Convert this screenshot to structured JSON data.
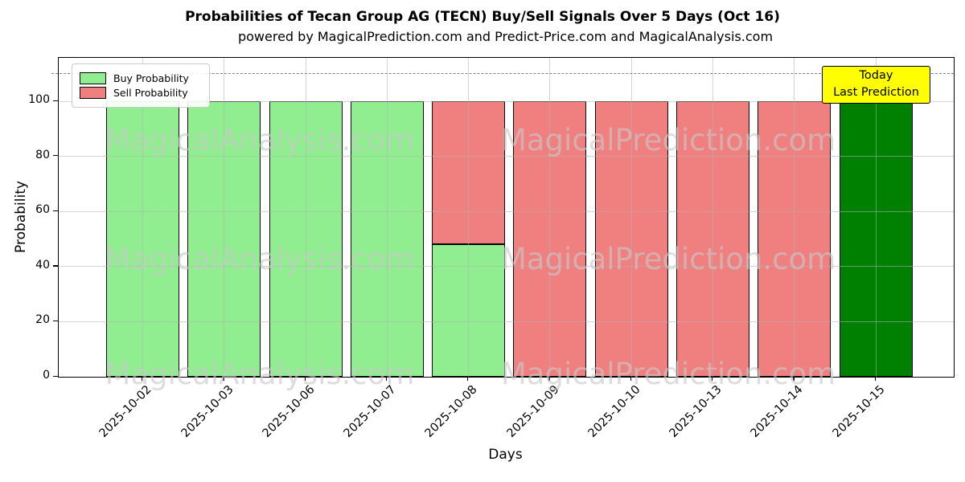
{
  "title": "Probabilities of Tecan Group AG (TECN) Buy/Sell Signals Over 5 Days (Oct 16)",
  "subtitle": "powered by MagicalPrediction.com and Predict-Price.com and MagicalAnalysis.com",
  "legend": {
    "items": [
      {
        "label": "Buy Probability",
        "color": "#90EE90"
      },
      {
        "label": "Sell Probability",
        "color": "#F08080"
      }
    ]
  },
  "annotation": {
    "line1": "Today",
    "line2": "Last Prediction",
    "bg_color": "#FFFF00"
  },
  "watermarks": {
    "left_text": "MagicalAnalysis.com",
    "right_text": "MagicalPrediction.com"
  },
  "axes": {
    "x_label": "Days",
    "y_label": "Probability",
    "y_ticks": [
      0,
      20,
      40,
      60,
      80,
      100
    ]
  },
  "chart_data": {
    "type": "bar",
    "stacked": true,
    "title": "Probabilities of Tecan Group AG (TECN) Buy/Sell Signals Over 5 Days (Oct 16)",
    "xlabel": "Days",
    "ylabel": "Probability",
    "ylim": [
      0,
      115.7
    ],
    "grid": true,
    "legend_position": "upper left",
    "dashed_threshold_y": 110,
    "categories": [
      "2025-10-02",
      "2025-10-03",
      "2025-10-06",
      "2025-10-07",
      "2025-10-08",
      "2025-10-09",
      "2025-10-10",
      "2025-10-13",
      "2025-10-14",
      "2025-10-15"
    ],
    "series": [
      {
        "name": "Buy Probability",
        "color": "#90EE90",
        "values": [
          100,
          100,
          100,
          100,
          48,
          0,
          0,
          0,
          0,
          0
        ]
      },
      {
        "name": "Sell Probability",
        "color": "#F08080",
        "values": [
          0,
          0,
          0,
          0,
          52,
          100,
          100,
          100,
          100,
          0
        ]
      },
      {
        "name": "Today Last Prediction",
        "color": "#008000",
        "values": [
          0,
          0,
          0,
          0,
          0,
          0,
          0,
          0,
          0,
          100
        ]
      }
    ]
  }
}
